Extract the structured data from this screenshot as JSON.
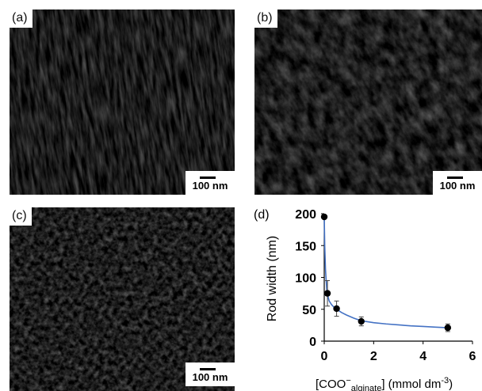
{
  "panels": {
    "a": {
      "label": "(a)",
      "scale": "100 nm"
    },
    "b": {
      "label": "(b)",
      "scale": "100 nm"
    },
    "c": {
      "label": "(c)",
      "scale": "100 nm"
    },
    "d": {
      "label": "(d)"
    }
  },
  "chart_data": {
    "type": "scatter",
    "title": "",
    "xlabel_main": "[COO",
    "xlabel_sup": "−",
    "xlabel_sub": "alginate",
    "xlabel_rest": "]  (mmol dm",
    "xlabel_exp": "-3",
    "xlabel_close": ")",
    "ylabel": "Rod width (nm)",
    "xlim": [
      0,
      6
    ],
    "ylim": [
      0,
      200
    ],
    "xticks": [
      "0",
      "2",
      "4",
      "6"
    ],
    "yticks": [
      "0",
      "50",
      "100",
      "150",
      "200"
    ],
    "grid": false,
    "point_color": "#000000",
    "fit_color": "#4472c4",
    "series": [
      {
        "x": [
          0,
          0.13,
          0.5,
          1.5,
          5.0
        ],
        "y": [
          195,
          75,
          51,
          31,
          21
        ],
        "err": [
          0,
          20,
          12,
          7,
          6
        ]
      }
    ],
    "fit": {
      "x": [
        0,
        0.02,
        0.05,
        0.1,
        0.15,
        0.2,
        0.3,
        0.4,
        0.5,
        0.7,
        0.9,
        1.2,
        1.5,
        2.0,
        2.5,
        3.0,
        3.5,
        4.0,
        4.5,
        5.0
      ],
      "y": [
        195,
        150,
        113,
        82,
        70,
        63,
        57,
        53,
        50,
        45,
        41,
        36,
        32,
        29,
        27,
        25.5,
        24,
        23,
        22,
        21
      ]
    }
  },
  "colors": {
    "background": "#ffffff"
  }
}
